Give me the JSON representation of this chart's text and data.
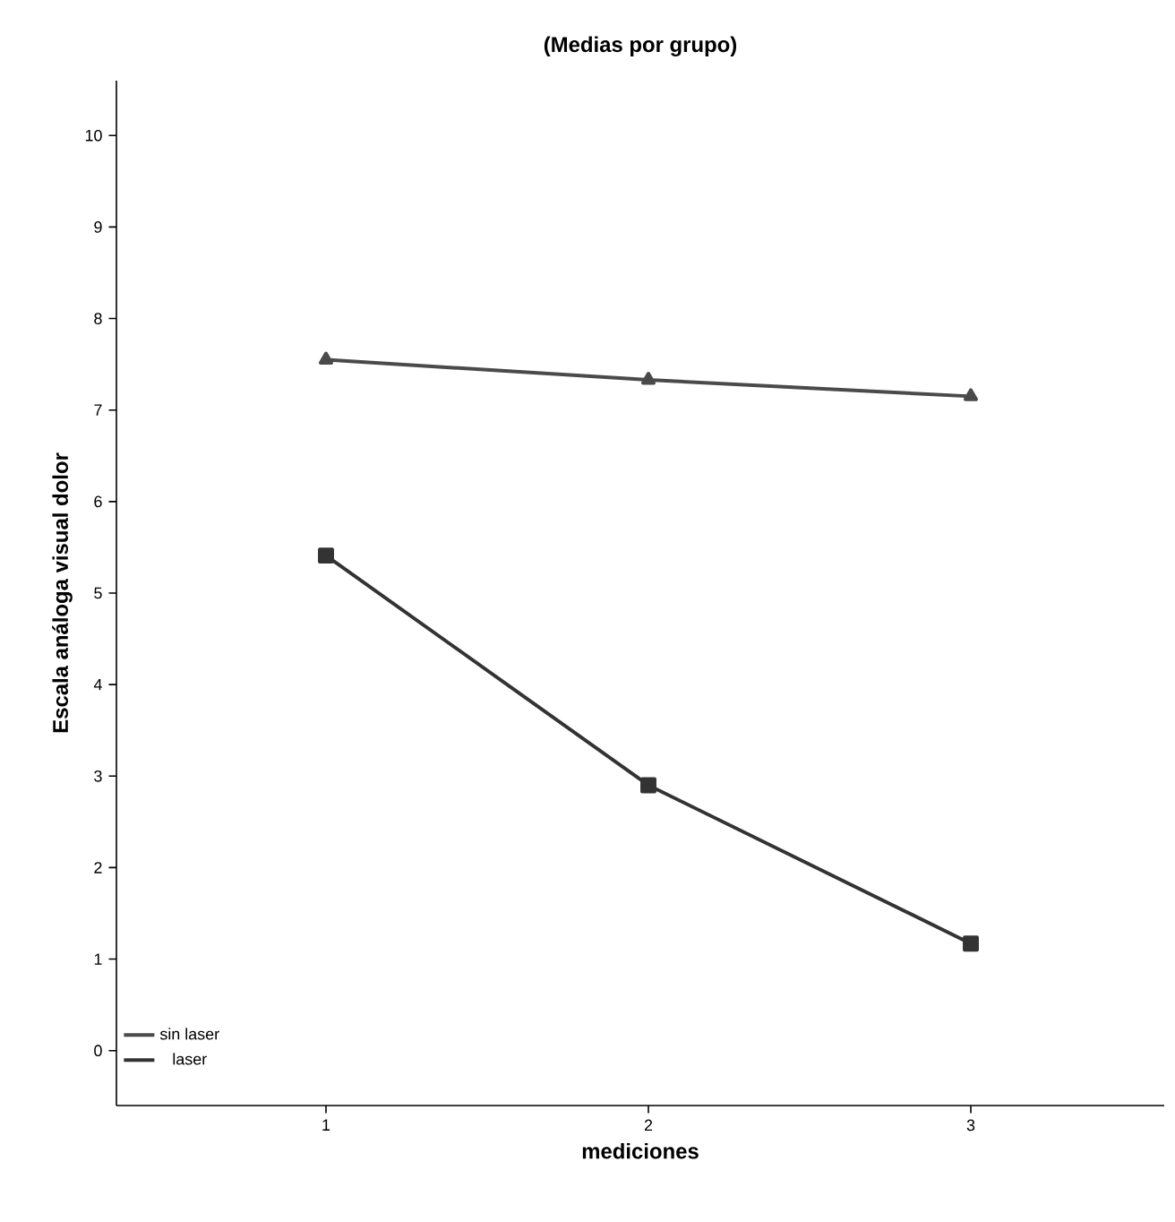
{
  "chart_data": {
    "type": "line",
    "title": "(Medias por grupo)",
    "xlabel": "mediciones",
    "ylabel": "Escala análoga visual dolor",
    "x": [
      1,
      2,
      3
    ],
    "series": [
      {
        "name": "sin laser",
        "color": "#4a4a4a",
        "marker": "triangle",
        "values": [
          7.55,
          7.33,
          7.15
        ]
      },
      {
        "name": "laser",
        "color": "#333333",
        "marker": "square",
        "values": [
          5.41,
          2.9,
          1.17
        ]
      }
    ],
    "xlim": [
      0.35,
      3.6
    ],
    "xticks": [
      1,
      2,
      3
    ],
    "ylim": [
      -0.6,
      10.6
    ],
    "yticks": [
      0,
      1,
      2,
      3,
      4,
      5,
      6,
      7,
      8,
      9,
      10
    ],
    "grid": false,
    "legend": "bottom left",
    "line_style": "solid"
  }
}
